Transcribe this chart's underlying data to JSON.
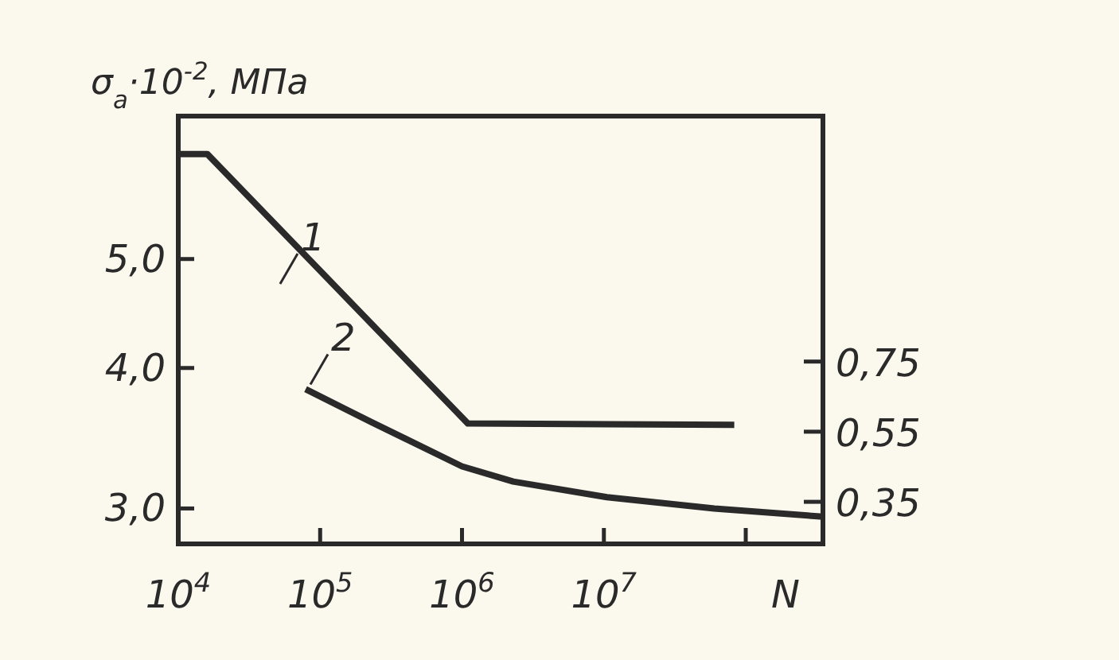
{
  "chart_data": {
    "type": "line",
    "ylabel": "σ$_{a}$·10$^{-2}$, МПа",
    "xlabel": "N",
    "log": "xy",
    "xlim": [
      10000,
      350000000
    ],
    "ylim": [
      2.79,
      6.7
    ],
    "y2lim": [
      0.23,
      1.45
    ],
    "xticks": [
      {
        "value": 10000,
        "label": "10$^{4}$"
      },
      {
        "value": 100000,
        "label": "10$^{5}$"
      },
      {
        "value": 1000000,
        "label": "10$^{6}$"
      },
      {
        "value": 10000000,
        "label": "10$^{7}$"
      },
      {
        "value": 100000000,
        "label": null
      }
    ],
    "yticks": [
      {
        "value": 3,
        "label": "3,0"
      },
      {
        "value": 4,
        "label": "4,0"
      },
      {
        "value": 5,
        "label": "5,0"
      }
    ],
    "y2ticks": [
      {
        "value": 0.35,
        "label": "0,35"
      },
      {
        "value": 0.55,
        "label": "0,55"
      },
      {
        "value": 0.75,
        "label": "0,75"
      }
    ],
    "grid": false,
    "marker": "none",
    "line_style": "solid",
    "series": [
      {
        "name": "1",
        "color": "#2a2a2a",
        "x": [
          10000,
          16000,
          1100000,
          83000000
        ],
        "values": [
          6.2,
          6.2,
          3.57,
          3.56
        ]
      },
      {
        "name": "2",
        "color": "#2a2a2a",
        "x": [
          79000,
          230000,
          1000000,
          2300000,
          10500000,
          60000000,
          350000000
        ],
        "values": [
          3.83,
          3.58,
          3.27,
          3.17,
          3.07,
          3.0,
          2.95
        ]
      }
    ]
  }
}
